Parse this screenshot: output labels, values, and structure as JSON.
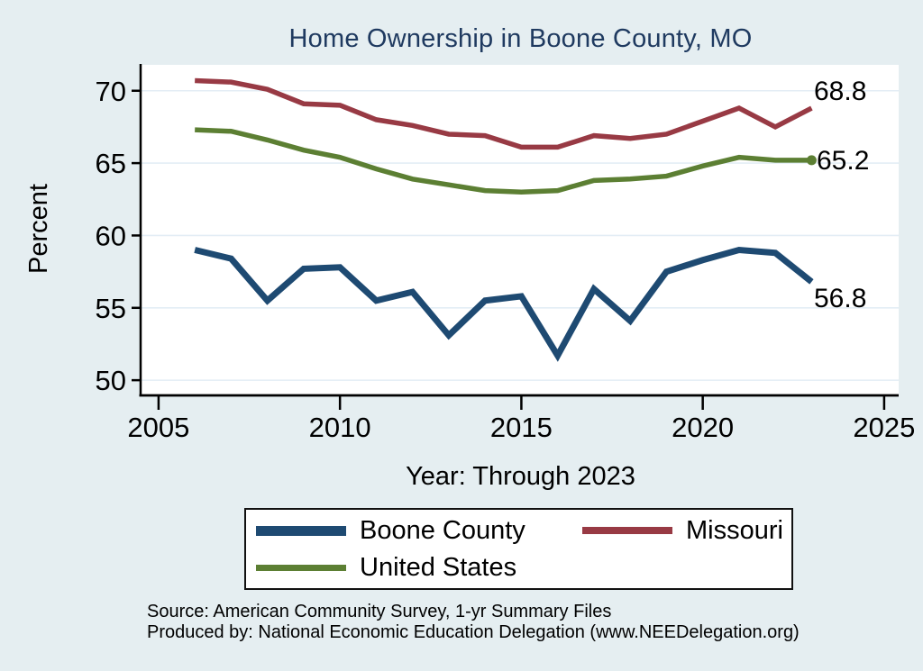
{
  "title": "Home Ownership in Boone County, MO",
  "chart_data": {
    "type": "line",
    "title": "Home Ownership in Boone County, MO",
    "xlabel": "Year: Through 2023",
    "ylabel": "Percent",
    "x": [
      2006,
      2007,
      2008,
      2009,
      2010,
      2011,
      2012,
      2013,
      2014,
      2015,
      2016,
      2017,
      2018,
      2019,
      2020,
      2021,
      2022,
      2023
    ],
    "series": [
      {
        "name": "Boone County",
        "color": "#1e4a72",
        "line_width": 7,
        "values": [
          59.0,
          58.4,
          55.5,
          57.7,
          57.8,
          55.5,
          56.1,
          53.1,
          55.5,
          55.8,
          51.7,
          56.3,
          54.1,
          57.5,
          58.3,
          59.0,
          58.8,
          56.8
        ]
      },
      {
        "name": "Missouri",
        "color": "#983a44",
        "line_width": 5.5,
        "values": [
          70.7,
          70.6,
          70.1,
          69.1,
          69.0,
          68.0,
          67.6,
          67.0,
          66.9,
          66.1,
          66.1,
          66.9,
          66.7,
          67.0,
          67.9,
          68.8,
          67.5,
          68.8
        ]
      },
      {
        "name": "United States",
        "color": "#5c7f33",
        "line_width": 5.5,
        "end_marker": true,
        "values": [
          67.3,
          67.2,
          66.6,
          65.9,
          65.4,
          64.6,
          63.9,
          63.5,
          63.1,
          63.0,
          63.1,
          63.8,
          63.9,
          64.1,
          64.8,
          65.4,
          65.2,
          65.2
        ]
      }
    ],
    "yticks": [
      50,
      55,
      60,
      65,
      70
    ],
    "xticks": [
      2005,
      2010,
      2015,
      2020,
      2025
    ],
    "ylim": [
      48.95,
      71.79
    ],
    "xlim": [
      2004.53,
      2025.4
    ],
    "grid": "horizontal",
    "legend_position": "bottom",
    "end_labels": [
      {
        "series": "Missouri",
        "text": "68.8"
      },
      {
        "series": "United States",
        "text": "65.2"
      },
      {
        "series": "Boone County",
        "text": "56.8"
      }
    ]
  },
  "source": {
    "line1": "Source: American Community Survey, 1-yr Summary Files",
    "line2": "Produced by: National Economic Education Delegation (www.NEEDelegation.org)"
  },
  "colors": {
    "background": "#e5eef1",
    "plot_background": "#ffffff",
    "gridline": "#e3edf5",
    "axis": "#000000",
    "title_text": "#1f3a60"
  }
}
